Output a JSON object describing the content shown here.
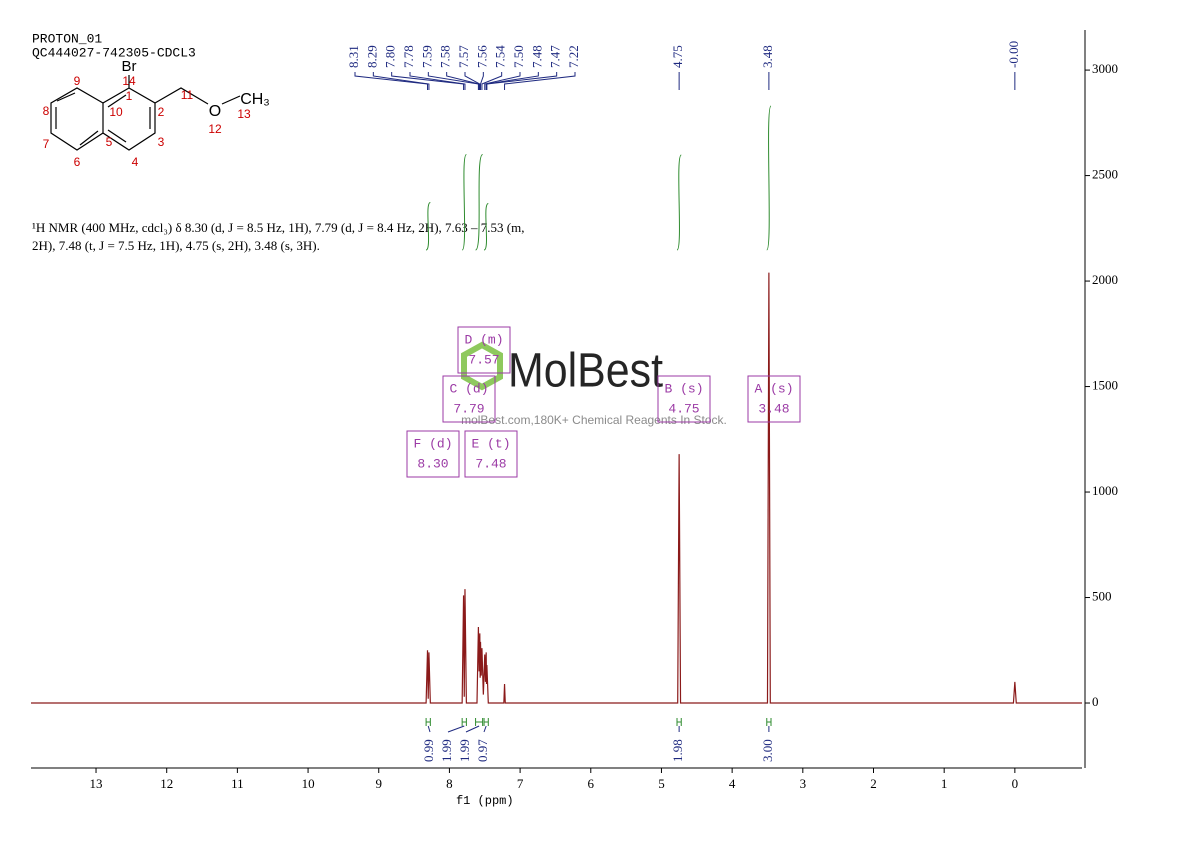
{
  "header": {
    "title": "PROTON_01",
    "sample": "QC444027-742305-CDCL3"
  },
  "structure": {
    "atoms": [
      "Br",
      "14",
      "1",
      "2",
      "3",
      "4",
      "5",
      "6",
      "7",
      "8",
      "9",
      "10",
      "11",
      "O",
      "12",
      "CH₃",
      "13"
    ]
  },
  "description": [
    "¹H NMR (400 MHz, cdcl₃) δ 8.30 (d, J = 8.5 Hz, 1H), 7.79 (d, J = 8.4 Hz, 2H), 7.63 – 7.53 (m,",
    "2H), 7.48 (t, J = 7.5 Hz, 1H), 4.75 (s, 2H), 3.48 (s, 3H)."
  ],
  "watermark": {
    "brand": "MolBest",
    "tagline": "molBest.com,180K+ Chemical Reagents In Stock."
  },
  "chart_data": {
    "type": "line",
    "x_label": "f1 (ppm)",
    "xlim": [
      13.92,
      -0.95
    ],
    "ylim": [
      -308,
      3190
    ],
    "xticks": [
      13,
      12,
      11,
      10,
      9,
      8,
      7,
      6,
      5,
      4,
      3,
      2,
      1,
      0
    ],
    "yticks": [
      0,
      500,
      1000,
      1500,
      2000,
      2500,
      3000
    ],
    "series": [
      {
        "color": "#8b1a1a",
        "x": [
          13.92,
          8.33,
          8.31,
          8.3,
          8.29,
          8.27,
          7.82,
          7.8,
          7.79,
          7.78,
          7.76,
          7.61,
          7.59,
          7.58,
          7.57,
          7.565,
          7.56,
          7.55,
          7.54,
          7.52,
          7.5,
          7.49,
          7.48,
          7.475,
          7.47,
          7.45,
          7.23,
          7.22,
          7.21,
          4.77,
          4.75,
          4.73,
          3.5,
          3.48,
          3.46,
          0.02,
          0.0,
          -0.02,
          -0.95
        ],
        "values": [
          0,
          0,
          250,
          20,
          240,
          0,
          0,
          510,
          30,
          540,
          0,
          0,
          360,
          150,
          330,
          120,
          290,
          130,
          260,
          40,
          230,
          100,
          240,
          90,
          180,
          0,
          0,
          90,
          0,
          0,
          1180,
          0,
          0,
          2040,
          0,
          0,
          100,
          0,
          0
        ]
      }
    ],
    "peak_labels": [
      8.31,
      8.29,
      {
        "value": 7.8,
        "label": "7.80"
      },
      7.78,
      7.59,
      7.58,
      7.57,
      7.56,
      7.54,
      {
        "value": 7.5,
        "label": "7.50"
      },
      7.48,
      7.47,
      7.22,
      4.75,
      3.48,
      {
        "value": 0,
        "label": "-0.00"
      }
    ],
    "peak_label_color": "#1f2a80",
    "integrals": [
      {
        "range": [
          8.33,
          8.27
        ],
        "value": 0.99
      },
      {
        "range": [
          7.82,
          7.76
        ],
        "value": 1.99
      },
      {
        "range": [
          7.63,
          7.53
        ],
        "value": 1.99
      },
      {
        "range": [
          7.51,
          7.45
        ],
        "value": 0.97
      },
      {
        "range": [
          4.78,
          4.72
        ],
        "value": 1.98
      },
      {
        "range": [
          3.51,
          3.45
        ],
        "value": 3,
        "label": "3.00"
      }
    ],
    "integral_color": "#2e8b2e",
    "multiplets": [
      {
        "label": "F (d)",
        "shift": {
          "value": 8.3,
          "label": "8.30"
        }
      },
      {
        "label": "C (d)",
        "shift": 7.79
      },
      {
        "label": "D (m)",
        "shift": 7.57
      },
      {
        "label": "E (t)",
        "shift": 7.48
      },
      {
        "label": "B (s)",
        "shift": 4.75
      },
      {
        "label": "A (s)",
        "shift": 3.48
      }
    ],
    "multiplet_color": "#9b3aa5"
  }
}
